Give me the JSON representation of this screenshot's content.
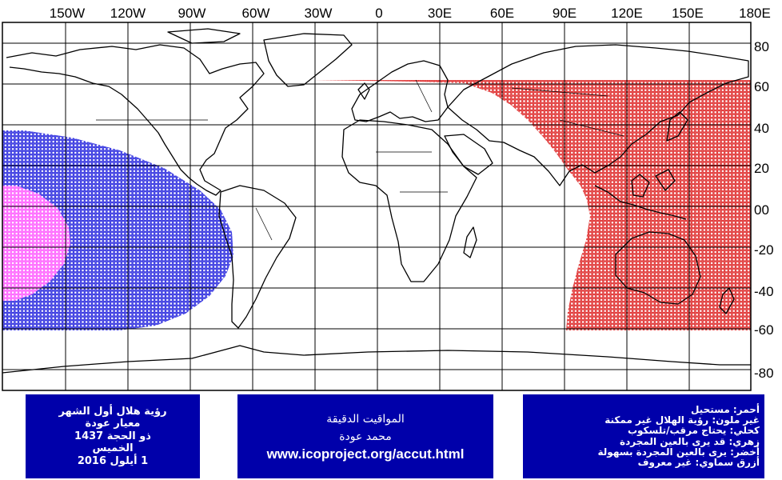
{
  "map": {
    "top_axis_labels": [
      "150W",
      "120W",
      "90W",
      "60W",
      "30W",
      "0",
      "30E",
      "60E",
      "90E",
      "120E",
      "150E",
      "180E"
    ],
    "right_axis_labels": [
      "80",
      "60",
      "40",
      "20",
      "00",
      "-20",
      "-40",
      "-60",
      "-80"
    ],
    "regions": [
      {
        "key": "red",
        "color": "#dd2222",
        "lon_range": [
          -30,
          180
        ],
        "lat_range": [
          -60,
          60
        ]
      },
      {
        "key": "blue",
        "color": "#2222dd",
        "lon_range": [
          -180,
          -90
        ],
        "lat_range": [
          -60,
          38
        ]
      },
      {
        "key": "pink",
        "color": "#ff55ff",
        "lon_range": [
          -180,
          -150
        ],
        "lat_range": [
          -30,
          30
        ]
      }
    ]
  },
  "title_box": {
    "line1": "رؤية هلال أول الشهر",
    "line2": "معيار عودة",
    "line3": "ذو الحجة 1437",
    "line4": "الخميس",
    "line5": "1 أيلول 2016"
  },
  "credits_box": {
    "line1": "المواقيت الدقيقة",
    "line2": "محمد عودة",
    "url": "www.icoproject.org/accut.html"
  },
  "legend_box": {
    "red": "أحمر: مستحيل",
    "none": "غير ملون: رؤية الهلال غير ممكنة",
    "blue": "كحلي: يحتاج مرقب/تلسكوب",
    "pink": "زهري: قد يرى بالعين المجردة",
    "green": "أخضر: يرى بالعين المجردة بسهولة",
    "sky": "أزرق سماوي: غير معروف"
  }
}
